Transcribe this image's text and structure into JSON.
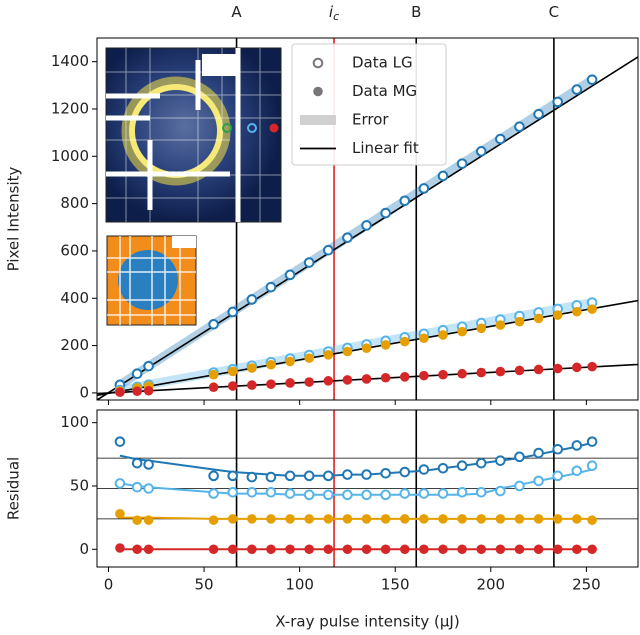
{
  "chart_data": {
    "type": "scatter",
    "x_label": "X-ray pulse intensity (μJ)",
    "xlim": [
      -6,
      277
    ],
    "xticks": [
      0,
      50,
      100,
      150,
      200,
      250
    ],
    "x": [
      6,
      15,
      21,
      55,
      65,
      75,
      85,
      95,
      105,
      115,
      125,
      135,
      145,
      155,
      165,
      175,
      185,
      195,
      205,
      215,
      225,
      235,
      245,
      253
    ],
    "vlines": [
      {
        "value": 67,
        "label": "A",
        "color": "#000000"
      },
      {
        "value": 118,
        "label": "i",
        "sub": "c",
        "color": "#e02020"
      },
      {
        "value": 161,
        "label": "B",
        "color": "#000000"
      },
      {
        "value": 233,
        "label": "C",
        "color": "#000000"
      }
    ],
    "legend": [
      {
        "label": "Data LG",
        "marker": "open"
      },
      {
        "label": "Data MG",
        "marker": "filled"
      },
      {
        "label": "Error",
        "marker": "band"
      },
      {
        "label": "Linear fit",
        "marker": "line"
      }
    ],
    "top": {
      "y_label": "Pixel Intensity",
      "ylim": [
        -30,
        1500
      ],
      "yticks": [
        0,
        200,
        400,
        600,
        800,
        1000,
        1200,
        1400
      ],
      "series": [
        {
          "marker": "open",
          "color": "#1f77b4",
          "error": true,
          "values": [
            34,
            81,
            113,
            290,
            342,
            395,
            447,
            499,
            551,
            603,
            656,
            708,
            760,
            812,
            864,
            917,
            969,
            1021,
            1073,
            1125,
            1178,
            1230,
            1282,
            1324
          ]
        },
        {
          "marker": "open",
          "color": "#56b4e9",
          "error": true,
          "values": [
            12,
            25,
            35,
            86,
            100,
            115,
            130,
            145,
            160,
            175,
            190,
            205,
            220,
            235,
            250,
            265,
            280,
            295,
            310,
            325,
            340,
            355,
            370,
            382
          ]
        },
        {
          "marker": "filled",
          "color": "#e69f00",
          "values": [
            8,
            21,
            29,
            77,
            91,
            105,
            119,
            133,
            147,
            161,
            175,
            189,
            203,
            217,
            231,
            245,
            259,
            273,
            287,
            301,
            315,
            329,
            343,
            354
          ]
        },
        {
          "marker": "filled",
          "color": "#d62728",
          "values": [
            3,
            7,
            9,
            24,
            29,
            33,
            37,
            42,
            46,
            51,
            55,
            59,
            64,
            68,
            73,
            77,
            81,
            86,
            90,
            95,
            99,
            103,
            108,
            111
          ]
        }
      ],
      "fits": [
        {
          "x": [
            -6,
            277
          ],
          "values": [
            -30,
            1420
          ]
        },
        {
          "x": [
            -6,
            277
          ],
          "values": [
            -10,
            390
          ]
        },
        {
          "x": [
            -6,
            277
          ],
          "values": [
            -3,
            120
          ]
        }
      ]
    },
    "bottom": {
      "y_label": "Residual",
      "ylim": [
        -14,
        110
      ],
      "yticks": [
        0,
        50,
        100
      ],
      "hlines": [
        24,
        48,
        72
      ],
      "series": [
        {
          "marker": "open",
          "color": "#1f77b4",
          "values": [
            85,
            68,
            67,
            58,
            58,
            57,
            57,
            58,
            58,
            58,
            59,
            59,
            60,
            61,
            63,
            64,
            66,
            68,
            70,
            73,
            76,
            79,
            82,
            85
          ],
          "fit": [
            74,
            71,
            70,
            63,
            61,
            60,
            59,
            58,
            58,
            58,
            59,
            59,
            60,
            61,
            62,
            64,
            66,
            68,
            70,
            72,
            75,
            78,
            81,
            84
          ]
        },
        {
          "marker": "open",
          "color": "#56b4e9",
          "values": [
            52,
            49,
            48,
            44,
            45,
            45,
            45,
            44,
            43,
            43,
            43,
            43,
            43,
            44,
            44,
            44,
            45,
            45,
            46,
            50,
            54,
            58,
            62,
            66
          ],
          "fit": [
            52,
            50,
            49,
            45,
            44,
            44,
            44,
            43,
            43,
            43,
            43,
            43,
            43,
            43,
            43,
            43,
            43,
            44,
            48,
            51,
            54,
            57,
            60,
            63
          ]
        },
        {
          "marker": "filled",
          "color": "#e69f00",
          "values": [
            28,
            23,
            23,
            23,
            24,
            24,
            24,
            24,
            24,
            24,
            24,
            24,
            24,
            24,
            24,
            24,
            24,
            24,
            24,
            24,
            24,
            24,
            24,
            23
          ],
          "fit": [
            25,
            25,
            25,
            24,
            24,
            24,
            24,
            24,
            24,
            24,
            24,
            24,
            24,
            24,
            24,
            24,
            24,
            24,
            24,
            24,
            24,
            24,
            24,
            24
          ]
        },
        {
          "marker": "filled",
          "color": "#d62728",
          "values": [
            1,
            0,
            0,
            0,
            0,
            0,
            0,
            0,
            0,
            0,
            0,
            0,
            0,
            0,
            0,
            0,
            0,
            0,
            0,
            0,
            0,
            0,
            0,
            0
          ],
          "fit": [
            0,
            0,
            0,
            0,
            0,
            0,
            0,
            0,
            0,
            0,
            0,
            0,
            0,
            0,
            0,
            0,
            0,
            0,
            0,
            0,
            0,
            0,
            0,
            0
          ]
        }
      ]
    }
  }
}
